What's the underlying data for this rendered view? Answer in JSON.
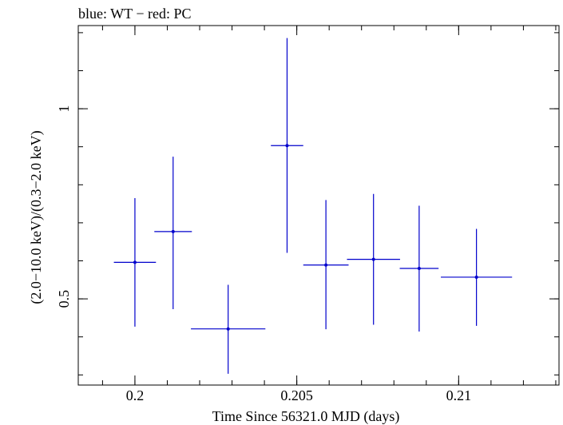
{
  "chart_data": {
    "type": "scatter",
    "title": "blue: WT − red: PC",
    "xlabel": "Time Since 56321.0 MJD (days)",
    "ylabel": "(2.0−10.0 keV)/(0.3−2.0 keV)",
    "xlim": [
      0.19825,
      0.2131
    ],
    "ylim": [
      0.2733,
      1.2187
    ],
    "x_ticks": [
      {
        "value": 0.2,
        "label": "0.2"
      },
      {
        "value": 0.205,
        "label": "0.205"
      },
      {
        "value": 0.21,
        "label": "0.21"
      }
    ],
    "y_ticks": [
      {
        "value": 0.5,
        "label": "0.5"
      },
      {
        "value": 1,
        "label": "1"
      }
    ],
    "x_minor_step": 0.001,
    "y_minor_step": 0.1,
    "grid": false,
    "series": [
      {
        "name": "WT",
        "color": "#0000cc",
        "points": [
          {
            "x": 0.2,
            "xerr": 0.00065,
            "y": 0.596,
            "ylo": 0.427,
            "yhi": 0.765
          },
          {
            "x": 0.20118,
            "xerr": 0.00058,
            "y": 0.677,
            "ylo": 0.473,
            "yhi": 0.874
          },
          {
            "x": 0.20288,
            "xerr": 0.00115,
            "y": 0.421,
            "ylo": 0.303,
            "yhi": 0.537
          },
          {
            "x": 0.2047,
            "xerr": 0.0005,
            "y": 0.903,
            "ylo": 0.621,
            "yhi": 1.186
          },
          {
            "x": 0.2059,
            "xerr": 0.0007,
            "y": 0.589,
            "ylo": 0.42,
            "yhi": 0.76
          },
          {
            "x": 0.20737,
            "xerr": 0.00082,
            "y": 0.604,
            "ylo": 0.432,
            "yhi": 0.776
          },
          {
            "x": 0.20878,
            "xerr": 0.0006,
            "y": 0.58,
            "ylo": 0.414,
            "yhi": 0.745
          },
          {
            "x": 0.21055,
            "xerr": 0.0011,
            "y": 0.557,
            "ylo": 0.429,
            "yhi": 0.684
          }
        ]
      }
    ]
  }
}
